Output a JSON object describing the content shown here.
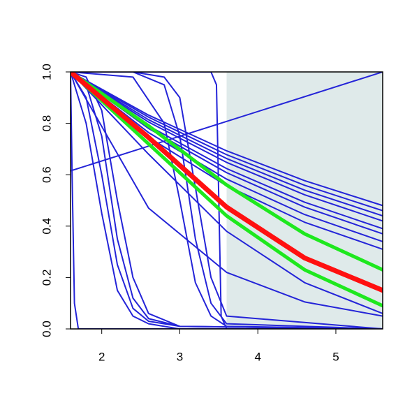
{
  "chart_data": {
    "type": "line",
    "xlim": [
      1.6,
      5.6
    ],
    "ylim": [
      0,
      1
    ],
    "xticks": [
      2,
      3,
      4,
      5
    ],
    "yticks": [
      {
        "value": 0,
        "label": "0.0"
      },
      0.2,
      0.4,
      0.6,
      0.8,
      {
        "value": 1,
        "label": "1.0"
      }
    ],
    "shade_xlim": [
      3.6,
      5.6
    ],
    "shade_color": "#dfeaea",
    "series": [
      {
        "color": "#2424d8",
        "line_width": 2,
        "x": [
          1.6,
          2.6,
          3.6,
          4.6,
          5.6
        ],
        "values": [
          1,
          0.832,
          0.693,
          0.577,
          0.48
        ]
      },
      {
        "color": "#2424d8",
        "line_width": 2,
        "x": [
          1.6,
          2.6,
          3.6,
          4.6,
          5.6
        ],
        "values": [
          1,
          0.824,
          0.678,
          0.559,
          0.46
        ]
      },
      {
        "color": "#2424d8",
        "line_width": 2,
        "x": [
          1.6,
          2.6,
          3.6,
          4.6,
          5.6
        ],
        "values": [
          1,
          0.814,
          0.663,
          0.54,
          0.44
        ]
      },
      {
        "color": "#2424d8",
        "line_width": 2,
        "x": [
          1.6,
          2.6,
          3.6,
          4.6,
          5.6
        ],
        "values": [
          1,
          0.805,
          0.648,
          0.522,
          0.42
        ]
      },
      {
        "color": "#2424d8",
        "line_width": 2,
        "x": [
          1.6,
          2.6,
          3.6,
          4.6,
          5.6
        ],
        "values": [
          1,
          0.79,
          0.624,
          0.493,
          0.39
        ]
      },
      {
        "color": "#2424d8",
        "line_width": 2,
        "x": [
          1.6,
          2.6,
          3.6,
          4.6,
          5.6
        ],
        "values": [
          1,
          0.78,
          0.608,
          0.474,
          0.37
        ]
      },
      {
        "color": "#2424d8",
        "line_width": 2,
        "x": [
          1.6,
          2.6,
          3.6,
          4.6,
          5.6
        ],
        "values": [
          1,
          0.764,
          0.583,
          0.445,
          0.34
        ]
      },
      {
        "color": "#2424d8",
        "line_width": 2,
        "x": [
          1.6,
          2.6,
          3.6,
          4.6,
          5.6
        ],
        "values": [
          1,
          0.746,
          0.557,
          0.415,
          0.31
        ]
      },
      {
        "color": "#2424d8",
        "line_width": 2,
        "x": [
          1.6,
          2.6,
          3.6,
          4.6,
          5.6
        ],
        "values": [
          1,
          0.68,
          0.38,
          0.18,
          0.06
        ]
      },
      {
        "color": "#2424d8",
        "line_width": 2,
        "x": [
          1.6,
          2.6,
          3.6,
          4.6,
          5.6
        ],
        "values": [
          1,
          0.47,
          0.22,
          0.105,
          0.05
        ]
      },
      {
        "color": "#2424d8",
        "line_width": 2,
        "x": [
          1.6,
          1.8,
          2.0,
          2.2,
          2.4,
          2.6,
          3.0,
          5.6
        ],
        "values": [
          1,
          0.8,
          0.45,
          0.15,
          0.05,
          0.02,
          0,
          0
        ]
      },
      {
        "color": "#2424d8",
        "line_width": 2,
        "x": [
          1.6,
          1.8,
          2.0,
          2.2,
          2.4,
          2.6,
          3.0,
          5.6
        ],
        "values": [
          1,
          0.9,
          0.6,
          0.25,
          0.08,
          0.03,
          0.01,
          0
        ]
      },
      {
        "color": "#2424d8",
        "line_width": 2,
        "x": [
          1.6,
          1.8,
          2.0,
          2.2,
          2.4,
          2.6,
          3.0,
          5.6
        ],
        "values": [
          1,
          0.95,
          0.75,
          0.35,
          0.12,
          0.04,
          0.01,
          0
        ]
      },
      {
        "color": "#2424d8",
        "line_width": 2,
        "x": [
          1.6,
          1.8,
          2.0,
          2.2,
          2.4,
          2.6,
          3.0,
          5.6
        ],
        "values": [
          1,
          0.98,
          0.85,
          0.5,
          0.2,
          0.06,
          0.01,
          0
        ]
      },
      {
        "color": "#2424d8",
        "line_width": 2,
        "x": [
          1.6,
          2.4,
          2.8,
          3.0,
          3.2,
          3.4,
          3.6,
          5.6
        ],
        "values": [
          1,
          0.98,
          0.8,
          0.5,
          0.18,
          0.05,
          0.01,
          0
        ]
      },
      {
        "color": "#2424d8",
        "line_width": 2,
        "x": [
          1.6,
          2.4,
          2.8,
          3.0,
          3.2,
          3.4,
          3.6,
          5.6
        ],
        "values": [
          1,
          1,
          0.95,
          0.75,
          0.35,
          0.1,
          0.02,
          0
        ]
      },
      {
        "color": "#2424d8",
        "line_width": 2,
        "x": [
          1.6,
          2.4,
          2.8,
          3.0,
          3.2,
          3.4,
          3.6,
          5.6
        ],
        "values": [
          1,
          1,
          0.98,
          0.9,
          0.55,
          0.2,
          0.05,
          0
        ]
      },
      {
        "color": "#2424d8",
        "line_width": 2,
        "x": [
          1.6,
          3.4,
          3.47,
          3.5,
          3.53,
          3.6,
          5.6
        ],
        "values": [
          1,
          1,
          0.95,
          0.5,
          0.05,
          0,
          0
        ]
      },
      {
        "color": "#2424d8",
        "line_width": 2,
        "x": [
          1.6,
          1.62,
          1.65,
          1.7,
          5.6
        ],
        "values": [
          1,
          0.6,
          0.1,
          0,
          0
        ]
      },
      {
        "color": "#2424d8",
        "line_width": 2,
        "x": [
          1.6,
          5.6
        ],
        "values": [
          0.615,
          1.0
        ]
      },
      {
        "color": "#1ee81e",
        "line_width": 5,
        "x": [
          1.6,
          2.6,
          3.6,
          4.6,
          5.6
        ],
        "values": [
          1,
          0.79,
          0.56,
          0.37,
          0.23
        ]
      },
      {
        "color": "#1ee81e",
        "line_width": 5,
        "x": [
          1.6,
          2.6,
          3.6,
          4.6,
          5.6
        ],
        "values": [
          1,
          0.72,
          0.44,
          0.23,
          0.09
        ]
      },
      {
        "color": "#ff1010",
        "line_width": 7,
        "x": [
          1.6,
          2.6,
          3.6,
          4.6,
          5.6
        ],
        "values": [
          1,
          0.745,
          0.474,
          0.276,
          0.15
        ]
      }
    ]
  }
}
